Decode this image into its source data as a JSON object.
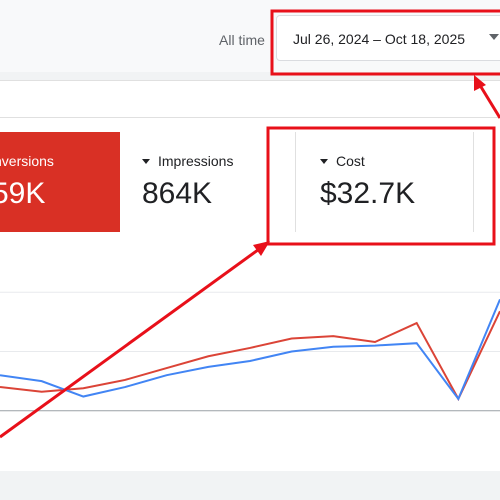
{
  "header": {
    "range_label": "All time",
    "date_range": "Jul 26, 2024 – Oct 18, 2025"
  },
  "metrics": [
    {
      "label": "nversions",
      "value": "59K",
      "active": true
    },
    {
      "label": "Impressions",
      "value": "864K",
      "active": false
    },
    {
      "label": "Cost",
      "value": "$32.7K",
      "active": false
    }
  ],
  "colors": {
    "accent_red": "#d93025",
    "series_blue": "#4285f4",
    "series_red": "#db4437",
    "annotation_red": "#e8101a"
  },
  "chart_data": {
    "type": "line",
    "x": [
      0,
      1,
      2,
      3,
      4,
      5,
      6,
      7,
      8,
      9,
      10,
      11,
      12
    ],
    "series": [
      {
        "values": [
          1.0,
          0.8,
          0.95,
          1.3,
          1.8,
          2.3,
          2.65,
          3.05,
          3.15,
          2.9,
          3.7,
          0.5,
          4.2
        ]
      },
      {
        "values": [
          1.5,
          1.25,
          0.6,
          1.0,
          1.5,
          1.85,
          2.1,
          2.5,
          2.7,
          2.75,
          2.85,
          0.5,
          4.7
        ]
      }
    ],
    "ylim": [
      -2.5,
      7.5
    ],
    "grid": true
  }
}
